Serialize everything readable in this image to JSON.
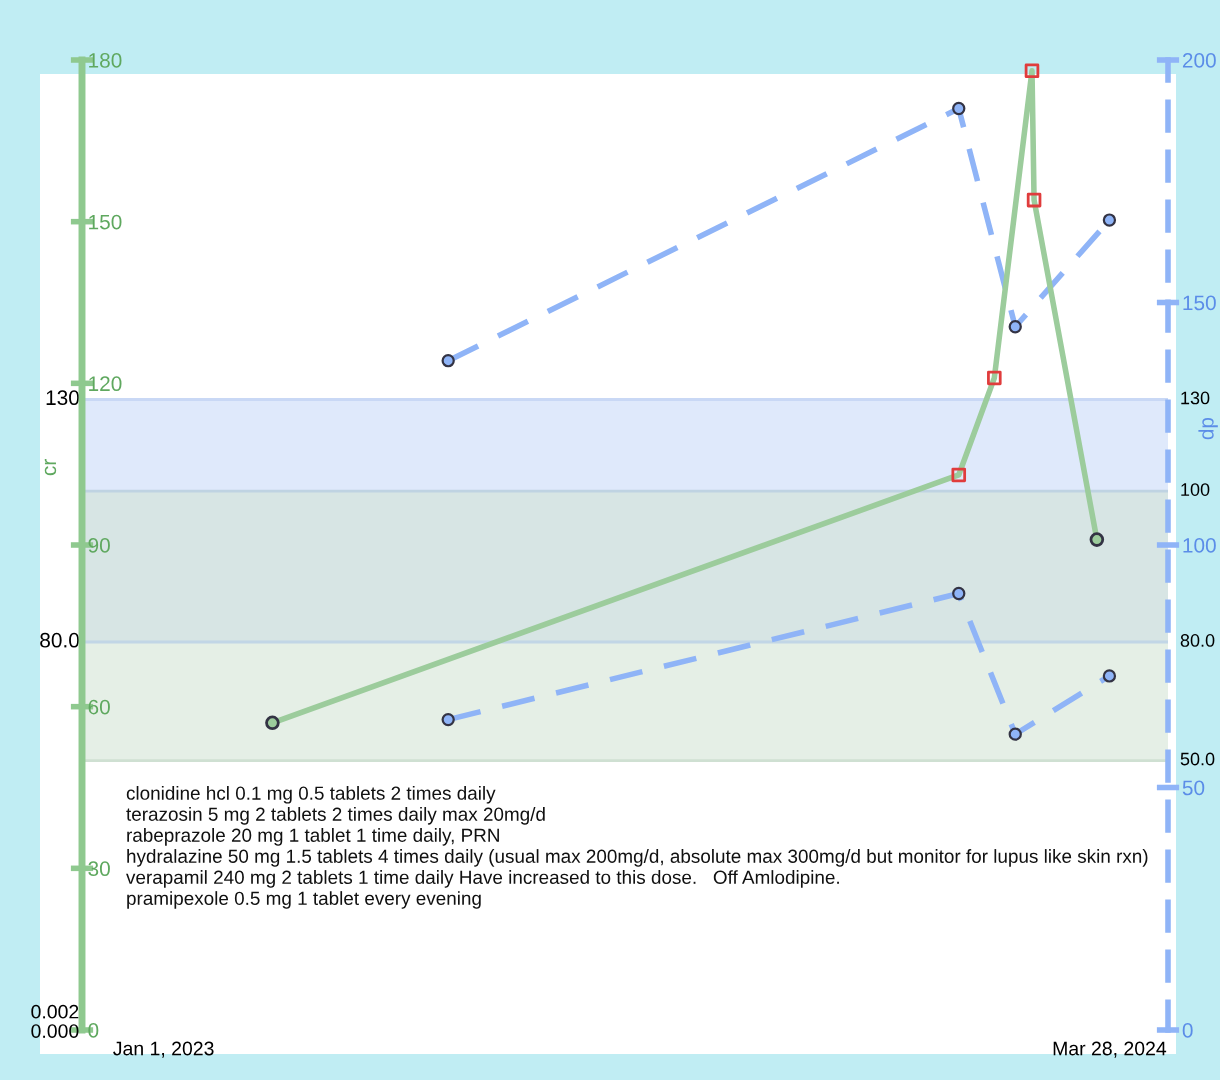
{
  "chart_data": {
    "type": "line",
    "ylabel": "cr",
    "y2label": "dp",
    "xlim": [
      "2022-11-23",
      "2024-04-25"
    ],
    "xticks": [
      {
        "value": "2023-01-01",
        "label": "Jan 1, 2023"
      },
      {
        "value": "2024-03-28",
        "label": "Mar 28, 2024"
      }
    ],
    "ylim": [
      0,
      180
    ],
    "yticks": [
      0,
      30,
      60,
      90,
      120,
      150,
      180
    ],
    "y2lim": [
      0,
      200
    ],
    "y2ticks": [
      0,
      50,
      100,
      150,
      200
    ],
    "series": [
      {
        "color": "#9ccc9c",
        "line_style": "solid",
        "marker": "none",
        "axis": "y",
        "x": [
          "2023-02-22",
          "2024-01-16",
          "2024-02-02",
          "2024-02-20",
          "2024-02-21",
          "2024-03-22"
        ],
        "values": [
          57,
          103,
          121,
          178,
          154,
          91
        ]
      },
      {
        "type": "scatter",
        "color": "#9ccc9c",
        "marker": "circle",
        "axis": "y",
        "x": [
          "2023-02-22",
          "2024-03-22"
        ],
        "values": [
          57,
          91
        ]
      },
      {
        "type": "scatter",
        "color": "#e03c3c",
        "marker": "square",
        "axis": "y",
        "x": [
          "2024-01-16",
          "2024-02-02",
          "2024-02-20",
          "2024-02-21"
        ],
        "values": [
          103,
          121,
          178,
          154
        ]
      },
      {
        "color": "#8fb4f7",
        "line_style": "dashed",
        "marker": "circle",
        "axis": "y2",
        "x": [
          "2023-05-17",
          "2024-01-16",
          "2024-02-12",
          "2024-03-28"
        ],
        "values": [
          138,
          190,
          145,
          167
        ]
      },
      {
        "color": "#8fb4f7",
        "line_style": "dashed",
        "marker": "circle",
        "axis": "y2",
        "x": [
          "2023-05-17",
          "2024-01-16",
          "2024-02-12",
          "2024-03-28"
        ],
        "values": [
          64,
          90,
          61,
          73
        ]
      }
    ],
    "bands": [
      {
        "axis": "y2",
        "from": 80,
        "to": 130,
        "color": "#c4d7f8"
      },
      {
        "axis": "y",
        "from": 50,
        "to": 100,
        "color": "#cfe2d2"
      }
    ],
    "ref_lines": [
      {
        "axis": "y2",
        "value": 130,
        "label": "130",
        "color": "#c9d8f5"
      },
      {
        "axis": "y2",
        "value": 80,
        "label": "80.0",
        "color": "#c2d6e6"
      },
      {
        "axis": "y",
        "value": 100,
        "label": "100",
        "color": "#bfd3e2"
      },
      {
        "axis": "y",
        "value": 50,
        "label": "50.0",
        "color": "#cfe0d2"
      }
    ],
    "annotations": [
      "clonidine hcl 0.1 mg 0.5 tablets 2 times daily\nterazosin 5 mg 2 tablets 2 times daily max 20mg/d\nrabeprazole 20 mg 1 tablet 1 time daily, PRN\nhydralazine 50 mg 1.5 tablets 4 times daily (usual max 200mg/d, absolute max 300mg/d but monitor for lupus like skin rxn)\nverapamil 240 mg 2 tablets 1 time daily Have increased to this dose.   Off Amlodipine.\npramipexole 0.5 mg 1 tablet every evening",
      "0.002",
      "0.000"
    ],
    "grid": false,
    "legend": false
  }
}
